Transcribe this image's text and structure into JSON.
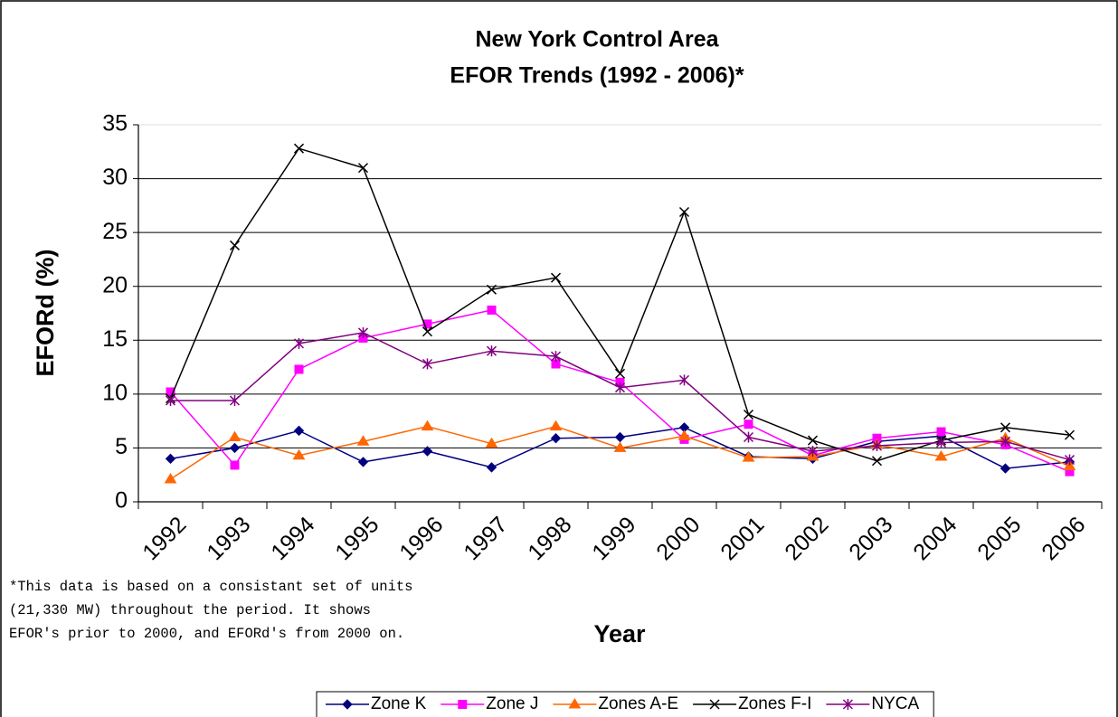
{
  "chart_data": {
    "type": "line",
    "title": [
      "New York Control Area",
      "EFOR Trends (1992 - 2006)*"
    ],
    "y_label": "EFORd (%)",
    "x_label": "Year",
    "footnote": [
      "*This data is based on a consistant set of units",
      "(21,330 MW) throughout the period. It shows",
      "EFOR's prior to 2000, and EFORd's from 2000 on."
    ],
    "categories": [
      "1992",
      "1993",
      "1994",
      "1995",
      "1996",
      "1997",
      "1998",
      "1999",
      "2000",
      "2001",
      "2002",
      "2003",
      "2004",
      "2005",
      "2006"
    ],
    "series": [
      {
        "name": "Zone K",
        "color": "#000080",
        "marker": "diamond",
        "values": [
          4.0,
          5.0,
          6.6,
          3.7,
          4.7,
          3.2,
          5.9,
          6.0,
          6.9,
          4.2,
          4.0,
          5.6,
          6.1,
          3.1,
          3.7
        ]
      },
      {
        "name": "Zone J",
        "color": "#ff00ff",
        "marker": "square",
        "values": [
          10.2,
          3.4,
          12.3,
          15.2,
          16.5,
          17.8,
          12.8,
          11.1,
          5.8,
          7.2,
          4.3,
          5.9,
          6.5,
          5.3,
          2.8
        ]
      },
      {
        "name": "Zones A-E",
        "color": "#ff6600",
        "marker": "triangle",
        "values": [
          2.1,
          6.0,
          4.3,
          5.6,
          7.0,
          5.4,
          7.0,
          5.0,
          6.1,
          4.1,
          4.2,
          5.3,
          4.2,
          5.9,
          3.3
        ]
      },
      {
        "name": "Zones F-I",
        "color": "#000000",
        "marker": "x",
        "values": [
          9.6,
          23.8,
          32.8,
          31.0,
          15.8,
          19.7,
          20.8,
          11.9,
          26.9,
          8.1,
          5.7,
          3.8,
          5.7,
          6.9,
          6.2
        ]
      },
      {
        "name": "NYCA",
        "color": "#800080",
        "marker": "star",
        "values": [
          9.4,
          9.4,
          14.7,
          15.7,
          12.8,
          14.0,
          13.5,
          10.6,
          11.3,
          6.0,
          4.7,
          5.2,
          5.5,
          5.6,
          3.9
        ]
      }
    ],
    "ylim": [
      0,
      35
    ],
    "yticks": [
      0,
      5,
      10,
      15,
      20,
      25,
      30,
      35
    ],
    "grid": true,
    "legend": "bottom"
  }
}
